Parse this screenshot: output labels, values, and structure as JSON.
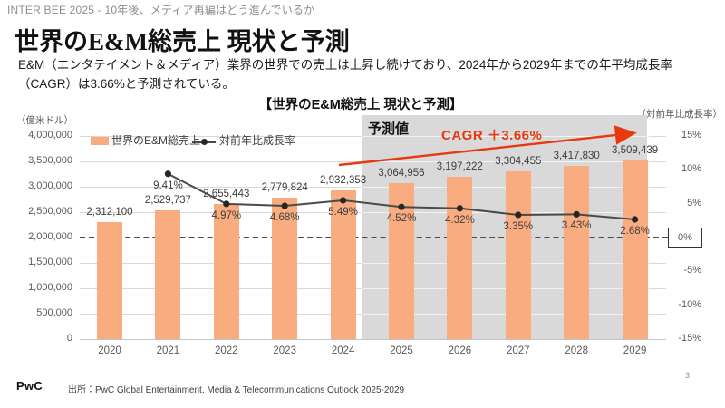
{
  "header": {
    "breadcrumb": "INTER BEE 2025 - 10年後、メディア再編はどう進んでいるか"
  },
  "title": "世界のE&M総売上 現状と予測",
  "lead": {
    "line1": "E&M（エンタテイメント＆メディア）業界の世界での売上は上昇し続けており、2024年から2029年までの年平均成長率",
    "line2": "（CAGR）は3.66%と予測されている。"
  },
  "chart_data": {
    "type": "bar+line",
    "title": "【世界のE&M総売上 現状と予測】",
    "categories": [
      "2020",
      "2021",
      "2022",
      "2023",
      "2024",
      "2025",
      "2026",
      "2027",
      "2028",
      "2029"
    ],
    "series": [
      {
        "name": "世界のE&M総売上",
        "type": "bar",
        "color": "#F9AC80",
        "axis": "left",
        "values": [
          2312100,
          2529737,
          2655443,
          2779824,
          2932353,
          3064956,
          3197222,
          3304455,
          3417830,
          3509439
        ],
        "labels": [
          "2,312,100",
          "2,529,737",
          "2,655,443",
          "2,779,824",
          "2,932,353",
          "3,064,956",
          "3,197,222",
          "3,304,455",
          "3,417,830",
          "3,509,439"
        ]
      },
      {
        "name": "対前年比成長率",
        "type": "line",
        "color": "#4a4a4a",
        "axis": "right",
        "values": [
          null,
          9.41,
          4.97,
          4.68,
          5.49,
          4.52,
          4.32,
          3.35,
          3.43,
          2.68
        ],
        "labels": [
          "",
          "9.41%",
          "4.97%",
          "4.68%",
          "5.49%",
          "4.52%",
          "4.32%",
          "3.35%",
          "3.43%",
          "2.68%"
        ]
      }
    ],
    "left_axis": {
      "unit": "（億米ドル）",
      "min": 0,
      "max": 4000000,
      "step": 500000,
      "tick_labels": [
        "0",
        "500,000",
        "1,000,000",
        "1,500,000",
        "2,000,000",
        "2,500,000",
        "3,000,000",
        "3,500,000",
        "4,000,000"
      ]
    },
    "right_axis": {
      "unit": "（対前年比成長率）",
      "min": -15,
      "max": 15,
      "step": 5,
      "tick_labels": [
        "15%",
        "10%",
        "5%",
        "0%",
        "-5%",
        "-10%",
        "-15%"
      ],
      "tick_values": [
        15,
        10,
        5,
        0,
        -5,
        -10,
        -15
      ],
      "zero_boxed": true
    },
    "forecast": {
      "label": "予測値",
      "start_category": "2025"
    },
    "annotation": {
      "text": "CAGR ＋3.66%",
      "color": "#E8380D"
    },
    "grid": true,
    "legend_position": "top-left-inside"
  },
  "footer": {
    "logo": "PwC",
    "source": "出所：PwC Global Entertainment, Media & Telecommunications Outlook 2025-2029",
    "page": "3"
  }
}
